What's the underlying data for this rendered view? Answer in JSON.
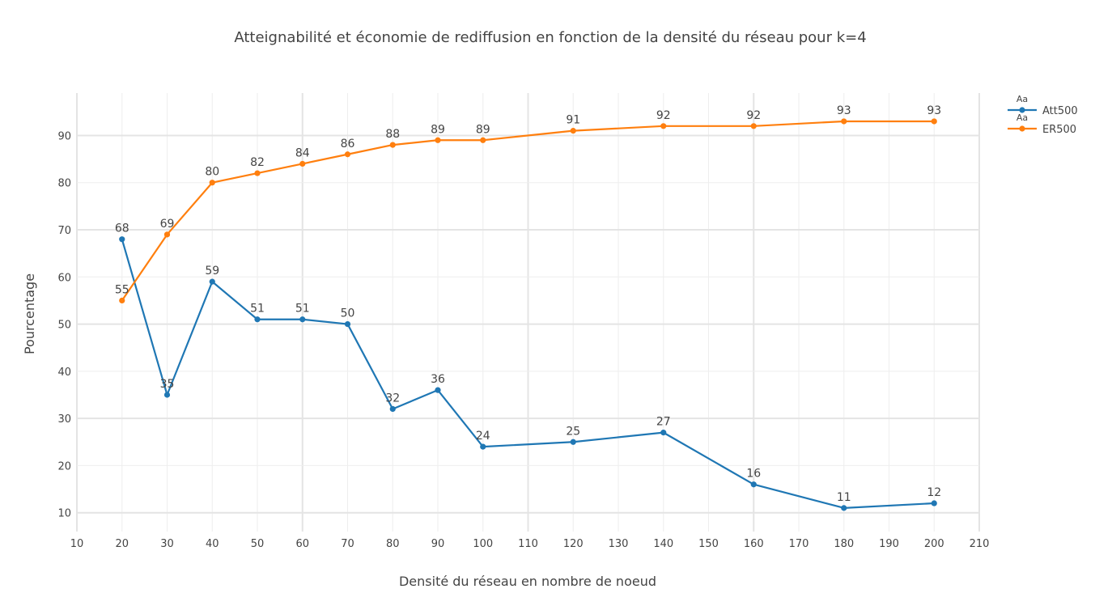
{
  "chart_data": {
    "type": "line",
    "title": "Atteignabilité et économie de rediffusion en fonction de la densité du réseau pour k=4",
    "xlabel": "Densité du réseau en nombre de noeud",
    "ylabel": "Pourcentage",
    "xlim": [
      10,
      210
    ],
    "ylim": [
      6,
      99
    ],
    "xticks": [
      10,
      20,
      30,
      40,
      50,
      60,
      70,
      80,
      90,
      100,
      110,
      120,
      130,
      140,
      150,
      160,
      170,
      180,
      190,
      200,
      210
    ],
    "yticks": [
      10,
      20,
      30,
      40,
      50,
      60,
      70,
      80,
      90
    ],
    "grid": true,
    "legend_position": "top-right",
    "legend_marker_text": "Aa",
    "x": [
      20,
      30,
      40,
      50,
      60,
      70,
      80,
      90,
      100,
      120,
      140,
      160,
      180,
      200
    ],
    "series": [
      {
        "name": "Att500",
        "color": "#1f77b4",
        "values": [
          68,
          35,
          59,
          51,
          51,
          50,
          32,
          36,
          24,
          25,
          27,
          16,
          11,
          12
        ]
      },
      {
        "name": "ER500",
        "color": "#ff7f0e",
        "values": [
          55,
          69,
          80,
          82,
          84,
          86,
          88,
          89,
          89,
          91,
          92,
          92,
          93,
          93
        ]
      }
    ]
  }
}
